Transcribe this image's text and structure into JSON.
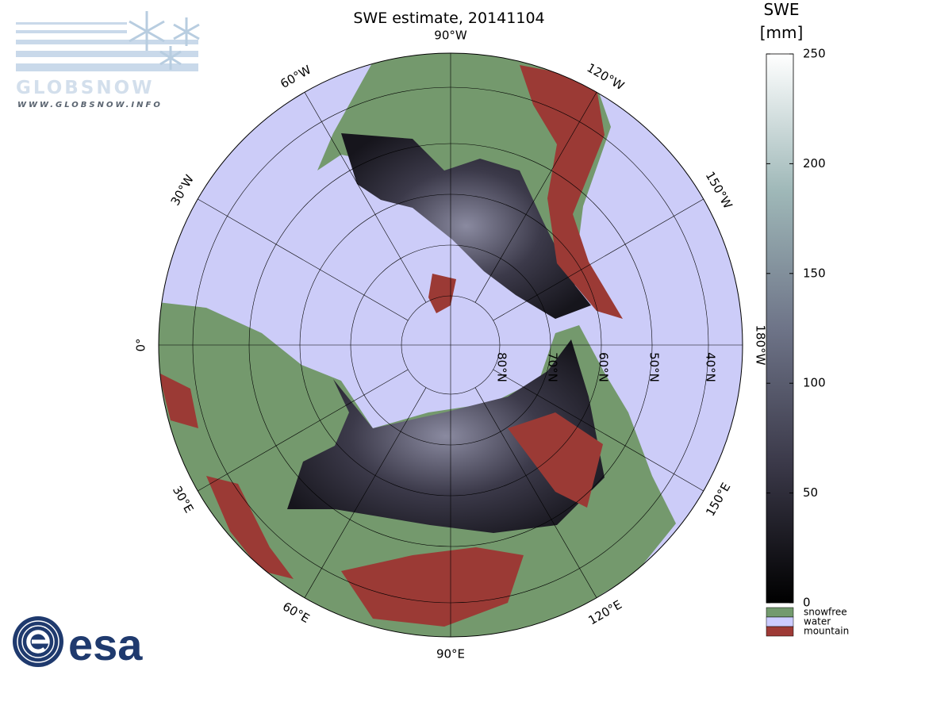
{
  "header": {
    "logo_text": "GLOBSNOW",
    "logo_url": "WWW.GLOBSNOW.INFO",
    "esa": "esa"
  },
  "map": {
    "title": "SWE estimate, 20141104",
    "longitude_labels": [
      "90°W",
      "120°W",
      "150°W",
      "180°W",
      "150°E",
      "120°E",
      "90°E",
      "60°E",
      "30°E",
      "0°",
      "30°W",
      "60°W"
    ],
    "latitude_labels": [
      "80°N",
      "70°N",
      "60°N",
      "50°N",
      "40°N"
    ]
  },
  "colorbar": {
    "title_lines": [
      "SWE",
      "[mm]"
    ],
    "lim": [
      0,
      250
    ],
    "ticks": [
      0,
      50,
      100,
      150,
      200,
      250
    ]
  },
  "legend": [
    {
      "label": "snowfree",
      "color": "#739a6e"
    },
    {
      "label": "water",
      "color": "#ccccff"
    },
    {
      "label": "mountain",
      "color": "#9e3a36"
    }
  ]
}
